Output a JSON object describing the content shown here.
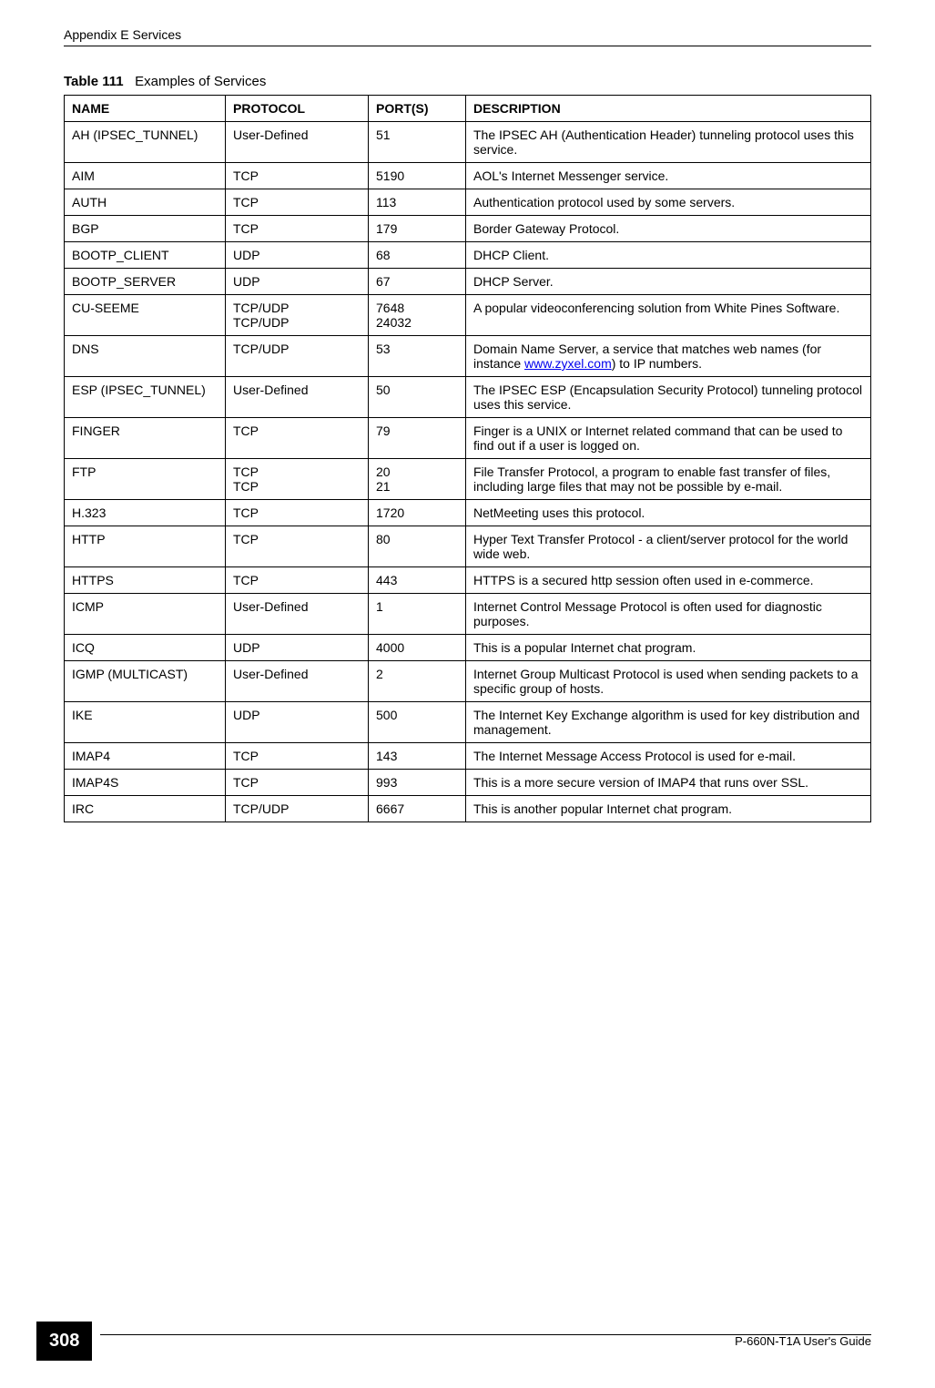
{
  "header": "Appendix E Services",
  "table_label": "Table 111",
  "table_title": "Examples of Services",
  "columns": [
    "NAME",
    "PROTOCOL",
    "PORT(S)",
    "DESCRIPTION"
  ],
  "rows": [
    {
      "name": "AH (IPSEC_TUNNEL)",
      "protocol": "User-Defined",
      "port": "51",
      "desc": "The IPSEC AH (Authentication Header) tunneling protocol uses this service."
    },
    {
      "name": "AIM",
      "protocol": "TCP",
      "port": "5190",
      "desc": "AOL's Internet Messenger service."
    },
    {
      "name": "AUTH",
      "protocol": "TCP",
      "port": "113",
      "desc": "Authentication protocol used by some servers."
    },
    {
      "name": "BGP",
      "protocol": "TCP",
      "port": "179",
      "desc": "Border Gateway Protocol."
    },
    {
      "name": "BOOTP_CLIENT",
      "protocol": "UDP",
      "port": "68",
      "desc": "DHCP Client."
    },
    {
      "name": "BOOTP_SERVER",
      "protocol": "UDP",
      "port": "67",
      "desc": "DHCP Server."
    },
    {
      "name": "CU-SEEME",
      "protocol": "TCP/UDP\nTCP/UDP",
      "port": "7648\n24032",
      "desc": "A popular videoconferencing solution from White Pines Software."
    },
    {
      "name": "DNS",
      "protocol": "TCP/UDP",
      "port": "53",
      "desc_pre": "Domain Name Server, a service that matches web names (for instance ",
      "link": "www.zyxel.com",
      "desc_post": ") to IP numbers."
    },
    {
      "name": "ESP (IPSEC_TUNNEL)",
      "protocol": "User-Defined",
      "port": "50",
      "desc": "The IPSEC ESP (Encapsulation Security Protocol) tunneling protocol uses this service."
    },
    {
      "name": "FINGER",
      "protocol": "TCP",
      "port": "79",
      "desc": "Finger is a UNIX or Internet related command that can be used to find out if a user is logged on."
    },
    {
      "name": "FTP",
      "protocol": "TCP\nTCP",
      "port": "20\n21",
      "desc": "File Transfer Protocol, a program to enable fast transfer of files, including large files that may not be possible by e-mail."
    },
    {
      "name": "H.323",
      "protocol": "TCP",
      "port": "1720",
      "desc": "NetMeeting uses this protocol."
    },
    {
      "name": "HTTP",
      "protocol": "TCP",
      "port": "80",
      "desc": "Hyper Text Transfer Protocol - a client/server protocol for the world wide web."
    },
    {
      "name": "HTTPS",
      "protocol": "TCP",
      "port": "443",
      "desc": "HTTPS is a secured http session often used in e-commerce."
    },
    {
      "name": "ICMP",
      "protocol": "User-Defined",
      "port": "1",
      "desc": "Internet Control Message Protocol is often used for diagnostic purposes."
    },
    {
      "name": "ICQ",
      "protocol": "UDP",
      "port": "4000",
      "desc": "This is a popular Internet chat program."
    },
    {
      "name": "IGMP (MULTICAST)",
      "protocol": "User-Defined",
      "port": "2",
      "desc": "Internet Group Multicast Protocol is used when sending packets to a specific group of hosts."
    },
    {
      "name": "IKE",
      "protocol": "UDP",
      "port": "500",
      "desc": "The Internet Key Exchange algorithm is used for key distribution and management."
    },
    {
      "name": "IMAP4",
      "protocol": "TCP",
      "port": "143",
      "desc": "The Internet Message Access Protocol is used for e-mail."
    },
    {
      "name": "IMAP4S",
      "protocol": "TCP",
      "port": "993",
      "desc": "This is a more secure version of IMAP4 that runs over SSL."
    },
    {
      "name": "IRC",
      "protocol": "TCP/UDP",
      "port": "6667",
      "desc": "This is another popular Internet chat program."
    }
  ],
  "page_number": "308",
  "footer_guide": "P-660N-T1A User's Guide"
}
